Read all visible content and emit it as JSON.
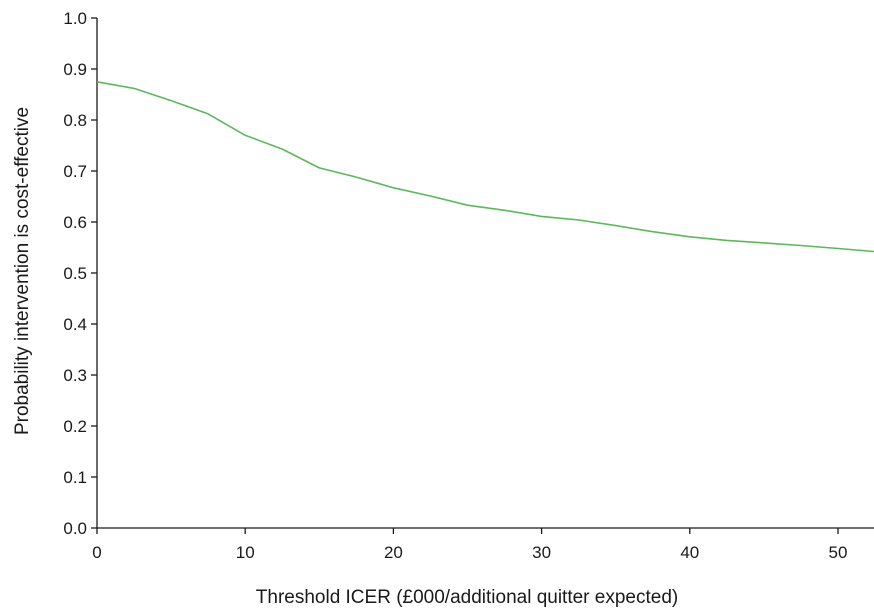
{
  "chart_data": {
    "type": "line",
    "title": "",
    "xlabel": "Threshold ICER (£000/additional quitter expected)",
    "ylabel": "Probability intervention is cost-effective",
    "xlim": [
      0,
      52.5
    ],
    "ylim": [
      0,
      1.0
    ],
    "x_ticks": [
      0,
      10,
      20,
      30,
      40,
      50
    ],
    "y_ticks": [
      0.0,
      0.1,
      0.2,
      0.3,
      0.4,
      0.5,
      0.6,
      0.7,
      0.8,
      0.9,
      1.0
    ],
    "x_tick_labels": [
      "0",
      "10",
      "20",
      "30",
      "40",
      "50"
    ],
    "y_tick_labels": [
      "0.0",
      "0.1",
      "0.2",
      "0.3",
      "0.4",
      "0.5",
      "0.6",
      "0.7",
      "0.8",
      "0.9",
      "1.0"
    ],
    "grid": false,
    "line_color": "#5cb85c",
    "series": [
      {
        "x": [
          0,
          2.5,
          5,
          7.5,
          10,
          12.5,
          15,
          17.5,
          20,
          22.5,
          25,
          27.5,
          30,
          32.5,
          35,
          37.5,
          40,
          42.5,
          45,
          47.5,
          50,
          52.5
        ],
        "values": [
          0.875,
          0.862,
          0.838,
          0.812,
          0.77,
          0.743,
          0.706,
          0.688,
          0.667,
          0.651,
          0.633,
          0.623,
          0.611,
          0.604,
          0.593,
          0.581,
          0.571,
          0.564,
          0.559,
          0.554,
          0.548,
          0.542
        ]
      }
    ]
  }
}
